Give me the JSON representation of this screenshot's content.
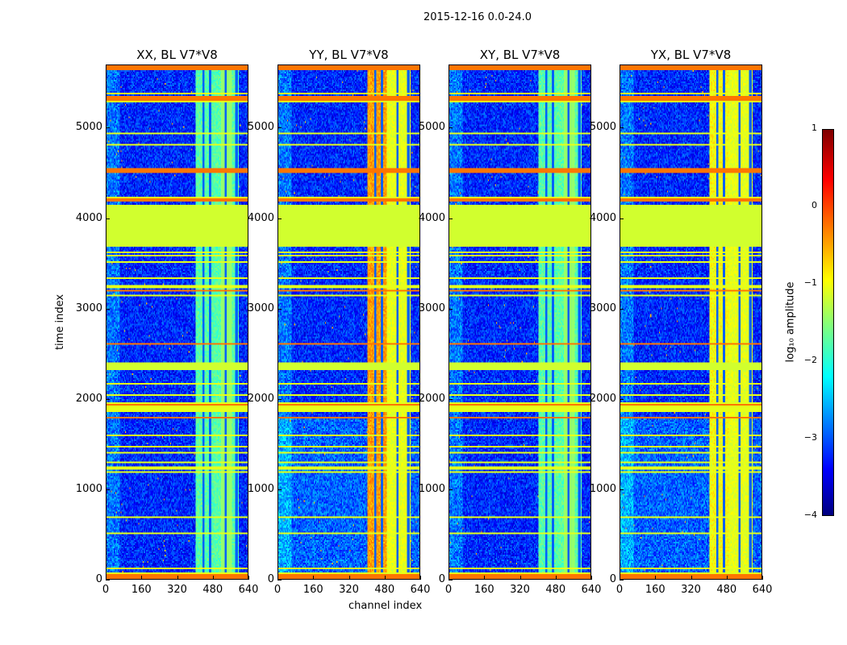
{
  "chart_data": {
    "type": "heatmap",
    "title": "2015-12-16 0.0-24.0",
    "xlabel": "channel index",
    "ylabel": "time index",
    "xlim": [
      0,
      640
    ],
    "ylim": [
      0,
      5700
    ],
    "xticks": [
      "0",
      "160",
      "320",
      "480",
      "640"
    ],
    "yticks": [
      "0",
      "1000",
      "2000",
      "3000",
      "4000",
      "5000"
    ],
    "panels": [
      {
        "title": "XX, BL V7*V8",
        "band_level": -1.7
      },
      {
        "title": "YY, BL V7*V8",
        "band_level": -0.4
      },
      {
        "title": "XY, BL V7*V8",
        "band_level": -1.7
      },
      {
        "title": "YX, BL V7*V8",
        "band_level": -0.9
      }
    ],
    "colorbar": {
      "label": "log₁₀ amplitude",
      "range": [
        -4,
        1
      ],
      "ticks": [
        "1",
        "0",
        "−1",
        "−2",
        "−3",
        "−4"
      ],
      "colormap": "jet"
    },
    "flagged_time_ranges": [
      [
        0,
        60
      ],
      [
        3680,
        4150
      ],
      [
        2320,
        2400
      ],
      [
        4180,
        4220
      ],
      [
        4500,
        4560
      ],
      [
        5300,
        5370
      ],
      [
        5650,
        5700
      ]
    ]
  }
}
